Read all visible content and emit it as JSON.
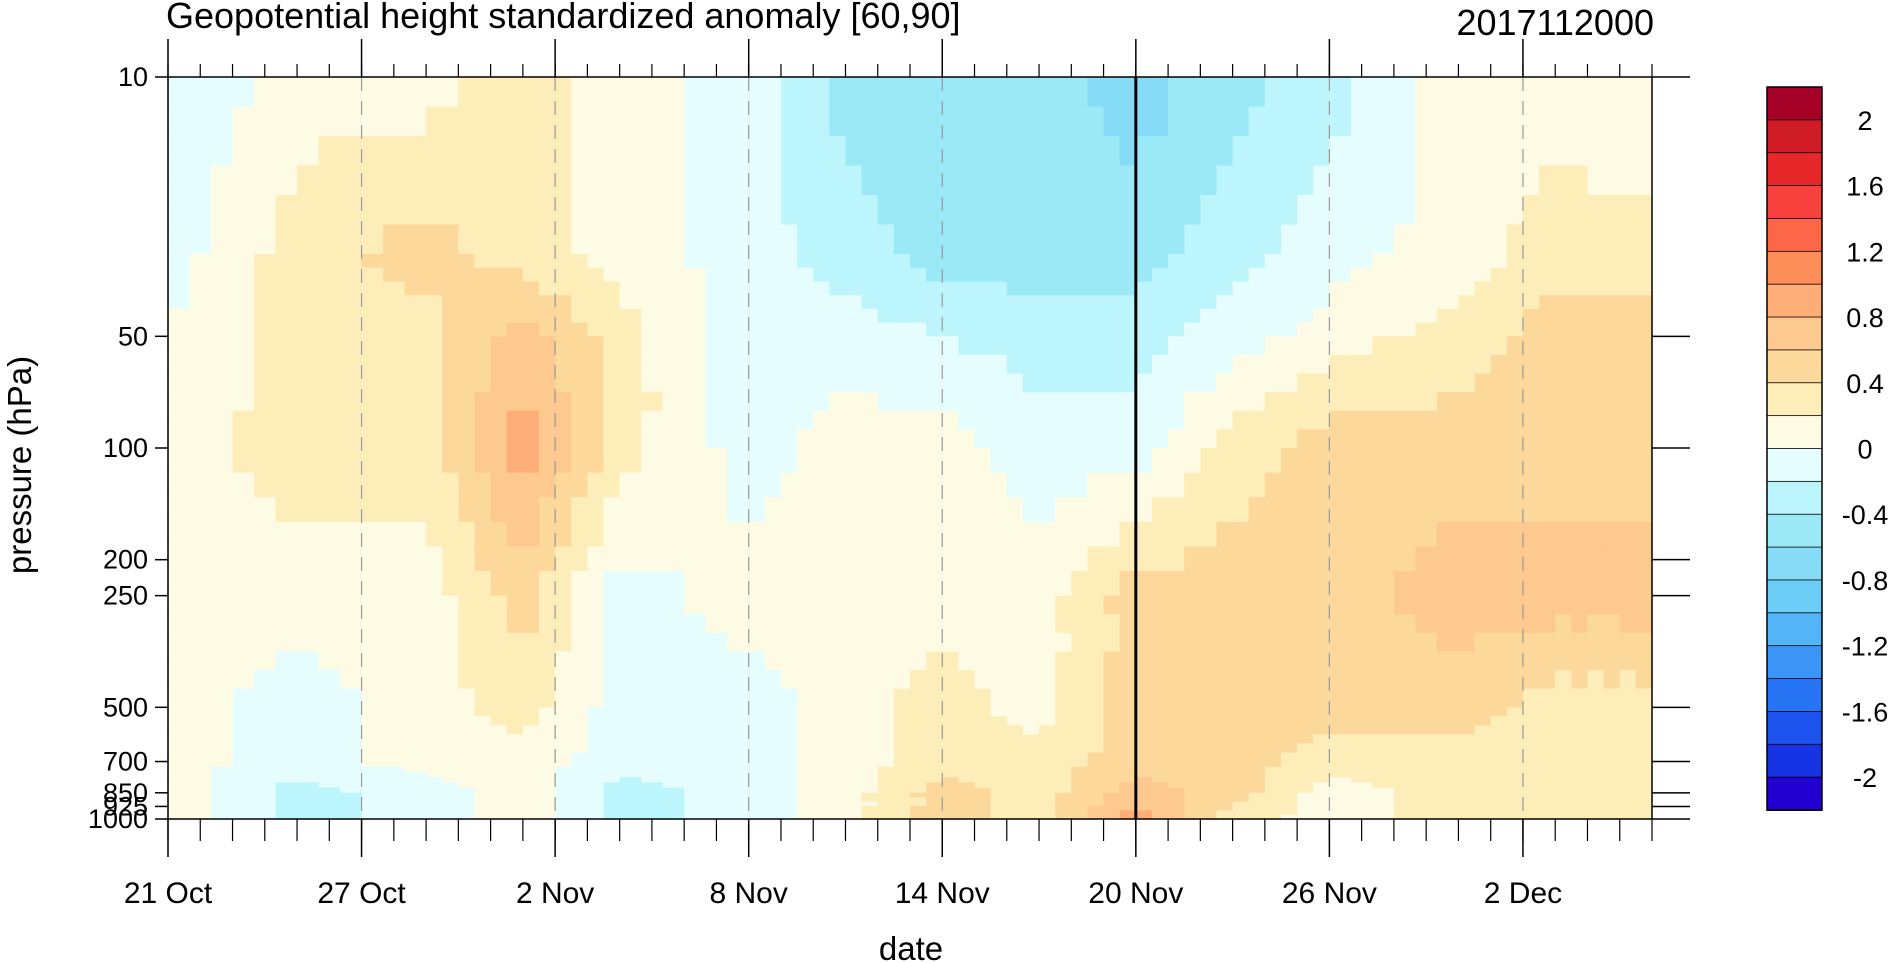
{
  "chart_data": {
    "type": "heatmap",
    "subtype": "filled-contour time-pressure section",
    "title": "Geopotential height standardized anomaly [60,90]",
    "date_stamp": "2017112000",
    "xlabel": "date",
    "ylabel": "pressure (hPa)",
    "x_range": [
      "2017-10-21",
      "2017-12-06"
    ],
    "x_ticks": [
      {
        "date": "2017-10-21",
        "label": "21 Oct"
      },
      {
        "date": "2017-10-27",
        "label": "27 Oct"
      },
      {
        "date": "2017-11-02",
        "label": "2 Nov"
      },
      {
        "date": "2017-11-08",
        "label": "8 Nov"
      },
      {
        "date": "2017-11-14",
        "label": "14 Nov"
      },
      {
        "date": "2017-11-20",
        "label": "20 Nov"
      },
      {
        "date": "2017-11-26",
        "label": "26 Nov"
      },
      {
        "date": "2017-12-02",
        "label": "2 Dec"
      }
    ],
    "y_scale": "log",
    "y_reversed": true,
    "y_range": [
      1000,
      10
    ],
    "y_ticks": [
      10,
      50,
      100,
      200,
      250,
      500,
      700,
      850,
      925,
      1000
    ],
    "y_tick_labels": [
      "10",
      "50",
      "100",
      "200",
      "250",
      "500",
      "700",
      "850",
      "925",
      "1000"
    ],
    "vertical_line_date": "2017-11-20",
    "colorbar": {
      "labels": [
        "2",
        "1.6",
        "1.2",
        "0.8",
        "0.4",
        "0",
        "-0.4",
        "-0.8",
        "-1.2",
        "-1.6",
        "-2"
      ],
      "levels": [
        -2.2,
        -2,
        -1.8,
        -1.6,
        -1.4,
        -1.2,
        -1,
        -0.8,
        -0.6,
        -0.4,
        -0.2,
        0,
        0.2,
        0.4,
        0.6,
        0.8,
        1,
        1.2,
        1.4,
        1.6,
        1.8,
        2,
        2.2
      ],
      "colors": [
        "#a50026",
        "#d01c27",
        "#e8272b",
        "#f6413c",
        "#fc6847",
        "#fd8e5a",
        "#fdae78",
        "#fdc98e",
        "#fdd89b",
        "#fdeeb9",
        "#fefbe5",
        "#e5fdff",
        "#bcf5fb",
        "#9be8f7",
        "#86dcf6",
        "#6ccdf6",
        "#53b4f8",
        "#3a95f7",
        "#2674f4",
        "#1c52ed",
        "#1533e3",
        "#2200d2"
      ]
    },
    "shading": {
      "grid_dates": [
        "2017-10-21",
        "2017-10-25",
        "2017-10-29",
        "2017-11-01",
        "2017-11-04",
        "2017-11-08",
        "2017-11-11",
        "2017-11-14",
        "2017-11-17",
        "2017-11-20",
        "2017-11-23",
        "2017-11-26",
        "2017-11-30",
        "2017-12-03",
        "2017-12-06"
      ],
      "grid_levels": [
        10,
        30,
        50,
        100,
        250,
        500,
        700,
        850,
        1000
      ],
      "values": [
        [
          -0.2,
          0.1,
          0.1,
          0.3,
          0.1,
          -0.1,
          -0.5,
          -0.5,
          -0.5,
          -0.7,
          -0.5,
          -0.3,
          0.1,
          0.1,
          0.0
        ],
        [
          -0.1,
          0.3,
          0.5,
          0.3,
          0.1,
          -0.1,
          -0.3,
          -0.5,
          -0.5,
          -0.5,
          -0.3,
          -0.1,
          0.1,
          0.3,
          0.3
        ],
        [
          0.0,
          0.3,
          0.3,
          0.7,
          0.3,
          -0.1,
          -0.1,
          -0.2,
          -0.3,
          -0.3,
          -0.1,
          0.1,
          0.3,
          0.5,
          0.5
        ],
        [
          0.1,
          0.3,
          0.3,
          0.9,
          0.3,
          -0.1,
          0.1,
          0.1,
          -0.1,
          -0.1,
          0.3,
          0.5,
          0.5,
          0.5,
          0.5
        ],
        [
          0.1,
          0.1,
          0.1,
          0.5,
          -0.1,
          0.1,
          0.1,
          0.1,
          0.1,
          0.5,
          0.5,
          0.5,
          0.7,
          0.7,
          0.7
        ],
        [
          0.1,
          -0.1,
          0.1,
          0.3,
          -0.1,
          -0.1,
          0.1,
          0.3,
          0.1,
          0.5,
          0.5,
          0.5,
          0.5,
          0.3,
          0.3
        ],
        [
          0.1,
          -0.1,
          0.1,
          0.1,
          -0.1,
          -0.1,
          0.1,
          0.3,
          0.3,
          0.5,
          0.5,
          0.3,
          0.3,
          0.3,
          0.3
        ],
        [
          0.1,
          -0.3,
          -0.1,
          0.1,
          -0.3,
          -0.1,
          0.1,
          0.5,
          0.3,
          0.7,
          0.5,
          0.1,
          0.3,
          0.3,
          0.3
        ],
        [
          0.1,
          -0.3,
          -0.1,
          0.1,
          -0.3,
          -0.1,
          0.1,
          0.5,
          0.3,
          0.9,
          0.3,
          0.1,
          0.3,
          0.3,
          0.3
        ]
      ]
    }
  }
}
